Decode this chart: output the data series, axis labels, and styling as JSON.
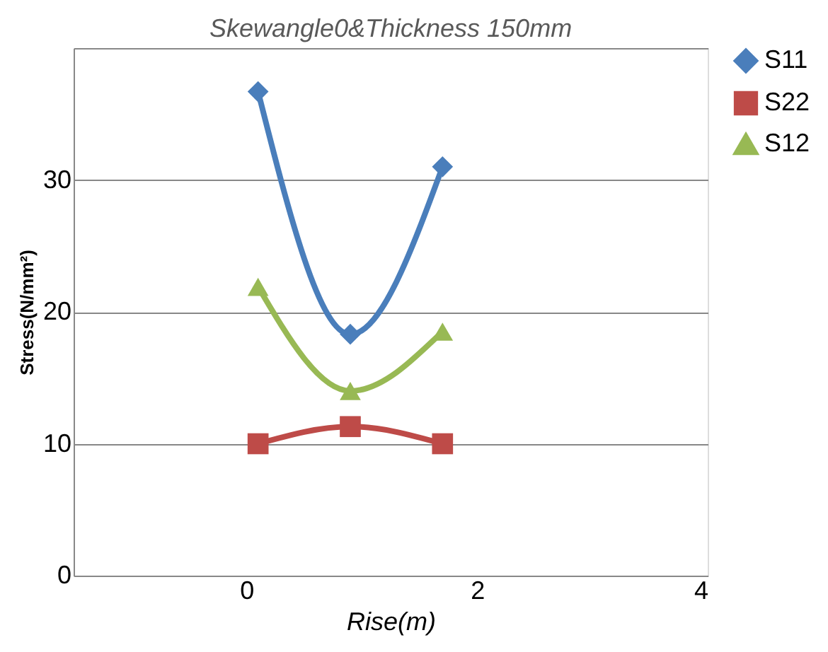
{
  "chart_data": {
    "type": "line",
    "title": "Skewangle0&Thickness 150mm",
    "xlabel": "Rise(m)",
    "ylabel": "Stress(N/mm²)",
    "x": [
      0.1,
      0.9,
      1.7
    ],
    "series": [
      {
        "name": "S11",
        "color": "#4a7ebb",
        "marker": "diamond",
        "values": [
          36.7,
          18.3,
          31
        ]
      },
      {
        "name": "S22",
        "color": "#be4b48",
        "marker": "square",
        "values": [
          10,
          11.3,
          10
        ]
      },
      {
        "name": "S12",
        "color": "#98b954",
        "marker": "triangle",
        "values": [
          21.9,
          14,
          18.5
        ]
      }
    ],
    "xlim": [
      -1.5,
      4
    ],
    "xticks": [
      0,
      2,
      4
    ],
    "ylim": [
      0,
      40
    ],
    "yticks": [
      0,
      10,
      20,
      30,
      {
        "value": 40,
        "label": null
      }
    ],
    "grid": "y",
    "legend": "right",
    "line_style": "solid"
  }
}
